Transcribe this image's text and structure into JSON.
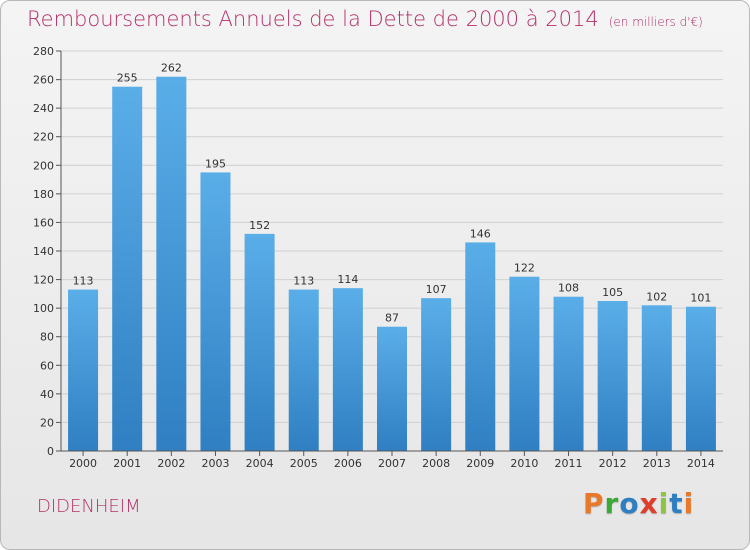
{
  "header": {
    "title": "Remboursements Annuels de la Dette de 2000 à 2014",
    "unit": "(en milliers d'€)"
  },
  "footer": {
    "city": "DIDENHEIM",
    "logo": "Proxiti"
  },
  "colors": {
    "title": "#b5306a",
    "bar_top": "#5aaee8",
    "bar_bottom": "#2f7fc2",
    "logo_letters": [
      "#e8792b",
      "#3aa935",
      "#2d7fc1",
      "#e03d2a",
      "#8cc63f",
      "#2d7fc1",
      "#e8792b"
    ]
  },
  "chart_data": {
    "type": "bar",
    "title": "Remboursements Annuels de la Dette de 2000 à 2014",
    "xlabel": "",
    "ylabel": "",
    "categories": [
      "2000",
      "2001",
      "2002",
      "2003",
      "2004",
      "2005",
      "2006",
      "2007",
      "2008",
      "2009",
      "2010",
      "2011",
      "2012",
      "2013",
      "2014"
    ],
    "values": [
      113,
      255,
      262,
      195,
      152,
      113,
      114,
      87,
      107,
      146,
      122,
      108,
      105,
      102,
      101
    ],
    "ylim": [
      0,
      280
    ],
    "yticks": [
      0,
      20,
      40,
      60,
      80,
      100,
      120,
      140,
      160,
      180,
      200,
      220,
      240,
      260,
      280
    ],
    "grid": true,
    "data_labels": true
  }
}
